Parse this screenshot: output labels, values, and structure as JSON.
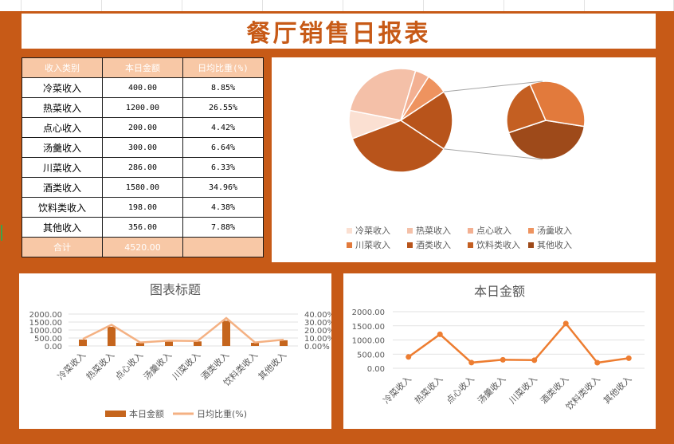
{
  "sheet": {
    "title": "餐厅销售日报表"
  },
  "table": {
    "headers": [
      "收入类别",
      "本日金额",
      "日均比重(%)"
    ],
    "rows": [
      {
        "category": "冷菜收入",
        "amount": "400.00",
        "ratio": "8.85%"
      },
      {
        "category": "热菜收入",
        "amount": "1200.00",
        "ratio": "26.55%"
      },
      {
        "category": "点心收入",
        "amount": "200.00",
        "ratio": "4.42%"
      },
      {
        "category": "汤羹收入",
        "amount": "300.00",
        "ratio": "6.64%"
      },
      {
        "category": "川菜收入",
        "amount": "286.00",
        "ratio": "6.33%"
      },
      {
        "category": "酒类收入",
        "amount": "1580.00",
        "ratio": "34.96%"
      },
      {
        "category": "饮料类收入",
        "amount": "198.00",
        "ratio": "4.38%"
      },
      {
        "category": "其他收入",
        "amount": "356.00",
        "ratio": "7.88%"
      }
    ],
    "total": {
      "label": "合计",
      "amount": "4520.00",
      "ratio": ""
    }
  },
  "colors": {
    "accent": "#c75a17",
    "bar": "#c5651d",
    "ratio_line": "#f4b183",
    "amount_line": "#ed7d31",
    "pie": [
      "#fbe0d2",
      "#f4c0a8",
      "#f3b092",
      "#ee935f",
      "#e27a3c",
      "#b8541b",
      "#c45f22",
      "#9e4a1a"
    ]
  },
  "chart_data": [
    {
      "type": "pie",
      "subtype": "pie-of-pie",
      "title": "",
      "categories": [
        "冷菜收入",
        "热菜收入",
        "点心收入",
        "汤羹收入",
        "川菜收入",
        "酒类收入",
        "饮料类收入",
        "其他收入"
      ],
      "values": [
        400,
        1200,
        200,
        300,
        286,
        1580,
        198,
        356
      ],
      "secondary_pie_categories": [
        "其他收入",
        "饮料类收入",
        "川菜收入"
      ],
      "legend": {
        "position": "bottom"
      }
    },
    {
      "type": "bar",
      "title": "图表标题",
      "categories": [
        "冷菜收入",
        "热菜收入",
        "点心收入",
        "汤羹收入",
        "川菜收入",
        "酒类收入",
        "饮料类收入",
        "其他收入"
      ],
      "series": [
        {
          "name": "本日金额",
          "type": "bar",
          "axis": "left",
          "values": [
            400,
            1200,
            200,
            300,
            286,
            1580,
            198,
            356
          ]
        },
        {
          "name": "日均比重(%)",
          "type": "line",
          "axis": "right",
          "values": [
            8.85,
            26.55,
            4.42,
            6.64,
            6.33,
            34.96,
            4.38,
            7.88
          ]
        }
      ],
      "ylim": [
        0,
        2000
      ],
      "yticks": [
        "2000.00",
        "1500.00",
        "1000.00",
        "500.00",
        "0.00"
      ],
      "y2lim": [
        0,
        40
      ],
      "y2ticks": [
        "40.00%",
        "30.00%",
        "20.00%",
        "10.00%",
        "0.00%"
      ],
      "legend": {
        "position": "bottom"
      }
    },
    {
      "type": "line",
      "title": "本日金额",
      "categories": [
        "冷菜收入",
        "热菜收入",
        "点心收入",
        "汤羹收入",
        "川菜收入",
        "酒类收入",
        "饮料类收入",
        "其他收入"
      ],
      "values": [
        400,
        1200,
        200,
        300,
        286,
        1580,
        198,
        356
      ],
      "ylim": [
        0,
        2000
      ],
      "yticks": [
        "2000.00",
        "1500.00",
        "1000.00",
        "500.00",
        "0.00"
      ],
      "grid": true
    }
  ]
}
